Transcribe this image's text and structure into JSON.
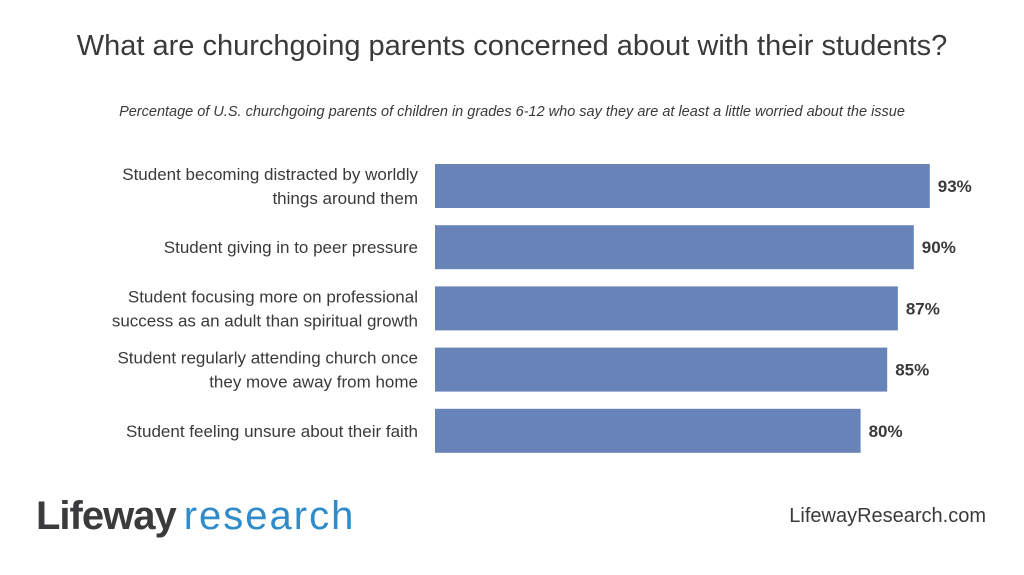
{
  "chart_data": {
    "type": "bar",
    "orientation": "horizontal",
    "title": "What are churchgoing parents concerned about with their students?",
    "subtitle": "Percentage of U.S. churchgoing parents of children in grades 6-12 who say they are at least a little worried about the issue",
    "categories": [
      [
        "Student becoming distracted by worldly",
        "things around them"
      ],
      [
        "Student giving in to peer pressure"
      ],
      [
        "Student focusing more on professional",
        "success as an adult than spiritual growth"
      ],
      [
        "Student regularly attending church once",
        "they move away from home"
      ],
      [
        "Student feeling unsure about their faith"
      ]
    ],
    "values": [
      93,
      90,
      87,
      85,
      80
    ],
    "labels": [
      "93%",
      "90%",
      "87%",
      "85%",
      "80%"
    ],
    "xlim": [
      0,
      100
    ],
    "bar_color": "#6783b8",
    "grid": false,
    "legend": "none"
  },
  "footer": {
    "logo_part1": "Lifeway",
    "logo_part2": "research",
    "url": "LifewayResearch.com"
  }
}
